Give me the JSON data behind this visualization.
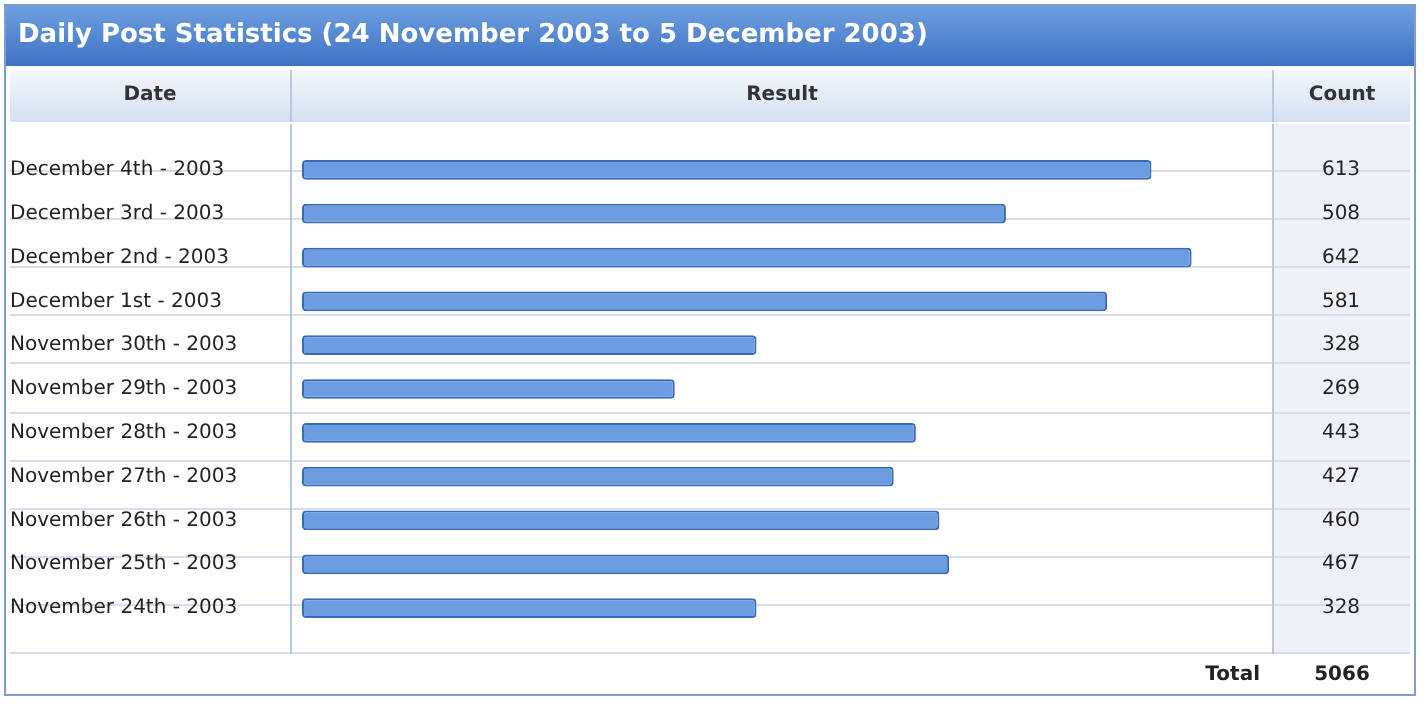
{
  "chart_data": {
    "type": "bar",
    "orientation": "horizontal",
    "title": "Daily Post Statistics (24 November 2003 to 5 December 2003)",
    "ylabel": "Date",
    "xlabel": "Result",
    "y2label": "Count",
    "categories": [
      "December 4th - 2003",
      "December 3rd - 2003",
      "December 2nd - 2003",
      "December 1st - 2003",
      "November 30th - 2003",
      "November 29th - 2003",
      "November 28th - 2003",
      "November 27th - 2003",
      "November 26th - 2003",
      "November 25th - 2003",
      "November 24th - 2003"
    ],
    "values": [
      613,
      508,
      642,
      581,
      328,
      269,
      443,
      427,
      460,
      467,
      328
    ],
    "color": "#6b9de0",
    "xlim": [
      0,
      700
    ],
    "data_labels": true,
    "grid": "y",
    "legend": false,
    "annotations": [
      "Total",
      "5066"
    ]
  }
}
